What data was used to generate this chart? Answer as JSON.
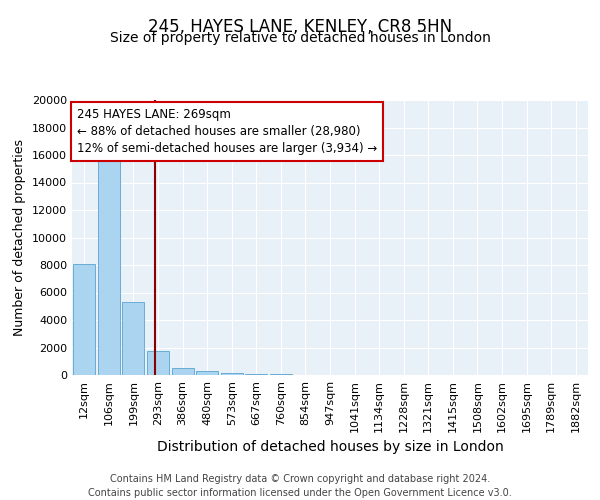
{
  "title": "245, HAYES LANE, KENLEY, CR8 5HN",
  "subtitle": "Size of property relative to detached houses in London",
  "xlabel": "Distribution of detached houses by size in London",
  "ylabel": "Number of detached properties",
  "categories": [
    "12sqm",
    "106sqm",
    "199sqm",
    "293sqm",
    "386sqm",
    "480sqm",
    "573sqm",
    "667sqm",
    "760sqm",
    "854sqm",
    "947sqm",
    "1041sqm",
    "1134sqm",
    "1228sqm",
    "1321sqm",
    "1415sqm",
    "1508sqm",
    "1602sqm",
    "1695sqm",
    "1789sqm",
    "1882sqm"
  ],
  "values": [
    8050,
    16500,
    5300,
    1750,
    500,
    300,
    150,
    80,
    50,
    30,
    20,
    15,
    10,
    8,
    6,
    5,
    4,
    3,
    3,
    2,
    2
  ],
  "bar_color": "#aad4f0",
  "bar_edge_color": "#5ba3d0",
  "vline_x": 2.88,
  "vline_color": "#8b0000",
  "annotation_text": "245 HAYES LANE: 269sqm\n← 88% of detached houses are smaller (28,980)\n12% of semi-detached houses are larger (3,934) →",
  "annotation_box_color": "white",
  "annotation_box_edge_color": "#cc0000",
  "ylim": [
    0,
    20000
  ],
  "yticks": [
    0,
    2000,
    4000,
    6000,
    8000,
    10000,
    12000,
    14000,
    16000,
    18000,
    20000
  ],
  "bg_color": "#e8f0f8",
  "footer_text": "Contains HM Land Registry data © Crown copyright and database right 2024.\nContains public sector information licensed under the Open Government Licence v3.0.",
  "title_fontsize": 12,
  "subtitle_fontsize": 10,
  "xlabel_fontsize": 10,
  "ylabel_fontsize": 9,
  "tick_fontsize": 8,
  "annotation_fontsize": 8.5,
  "footer_fontsize": 7
}
